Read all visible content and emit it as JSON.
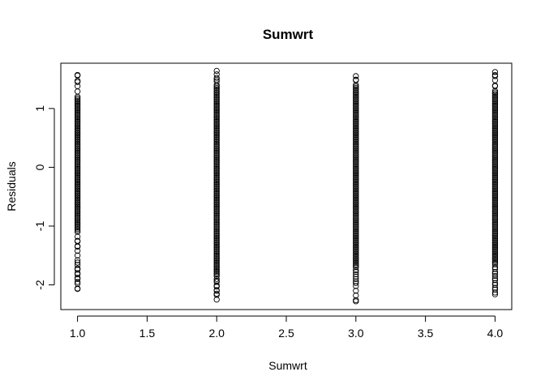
{
  "chart_data": {
    "type": "scatter",
    "title": "Sumwrt",
    "xlabel": "Sumwrt",
    "ylabel": "Residuals",
    "xlim": [
      0.88,
      4.12
    ],
    "ylim": [
      -2.42,
      1.77
    ],
    "xticks": [
      1.0,
      1.5,
      2.0,
      2.5,
      3.0,
      3.5,
      4.0
    ],
    "xtick_labels": [
      "1.0",
      "1.5",
      "2.0",
      "2.5",
      "3.0",
      "3.5",
      "4.0"
    ],
    "yticks": [
      -2,
      -1,
      0,
      1
    ],
    "ytick_labels": [
      "-2",
      "-1",
      "0",
      "1"
    ],
    "grid": false,
    "marker": "open-circle",
    "series": [
      {
        "x": 1,
        "y_min": -2.07,
        "y_max": 1.57,
        "dense_min": -1.1,
        "dense_max": 1.2,
        "sparse": [
          1.57,
          1.45,
          -1.58,
          -1.62,
          -1.72,
          -1.8,
          -1.88,
          -1.95,
          -2.07,
          -1.35,
          -1.25
        ]
      },
      {
        "x": 2,
        "y_min": -2.25,
        "y_max": 1.64,
        "dense_min": -1.85,
        "dense_max": 1.4,
        "sparse": [
          1.64,
          1.58,
          1.52,
          1.46,
          -1.9,
          -1.95,
          -2.03,
          -2.1,
          -2.15,
          -2.25
        ]
      },
      {
        "x": 3,
        "y_min": -2.28,
        "y_max": 1.55,
        "dense_min": -1.7,
        "dense_max": 1.4,
        "sparse": [
          1.55,
          1.48,
          -1.75,
          -1.82,
          -1.9,
          -1.97,
          -2.02,
          -2.28
        ]
      },
      {
        "x": 4,
        "y_min": -2.16,
        "y_max": 1.62,
        "dense_min": -1.65,
        "dense_max": 1.3,
        "sparse": [
          1.62,
          1.55,
          1.48,
          1.38,
          1.2,
          -1.7,
          -1.78,
          -1.85,
          -1.92,
          -2.0,
          -2.08,
          -2.16
        ]
      }
    ]
  }
}
